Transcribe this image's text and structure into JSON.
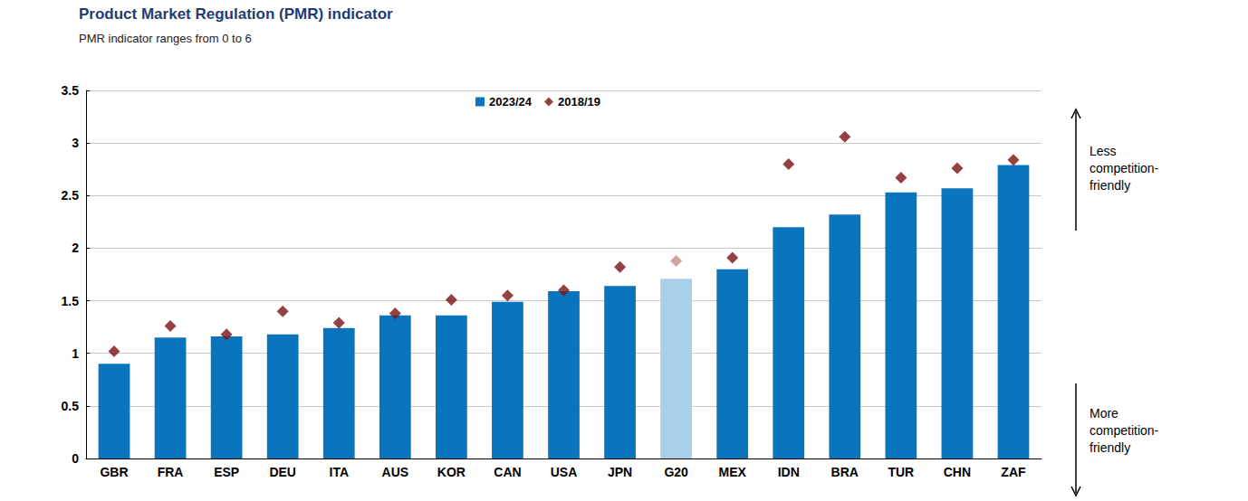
{
  "chart_data": {
    "type": "bar",
    "title": "Product Market Regulation (PMR) indicator",
    "subtitle": "PMR indicator ranges from 0 to 6",
    "annotations": [
      "Less competition-friendly",
      "More competition-friendly"
    ],
    "categories": [
      "GBR",
      "FRA",
      "ESP",
      "DEU",
      "ITA",
      "AUS",
      "KOR",
      "CAN",
      "USA",
      "JPN",
      "G20",
      "MEX",
      "IDN",
      "BRA",
      "TUR",
      "CHN",
      "ZAF"
    ],
    "series": [
      {
        "name": "2023/24",
        "type": "bar",
        "color": "#0a75bd",
        "colors": [
          "#0a75bd",
          "#0a75bd",
          "#0a75bd",
          "#0a75bd",
          "#0a75bd",
          "#0a75bd",
          "#0a75bd",
          "#0a75bd",
          "#0a75bd",
          "#0a75bd",
          "#a9cfea",
          "#0a75bd",
          "#0a75bd",
          "#0a75bd",
          "#0a75bd",
          "#0a75bd",
          "#0a75bd"
        ],
        "values": [
          0.9,
          1.15,
          1.16,
          1.18,
          1.24,
          1.36,
          1.36,
          1.49,
          1.59,
          1.64,
          1.71,
          1.8,
          2.2,
          2.32,
          2.53,
          2.57,
          2.79
        ]
      },
      {
        "name": "2018/19",
        "type": "scatter",
        "marker": "diamond",
        "color": "#7b1113",
        "colors": [
          "#7b1113",
          "#7b1113",
          "#7b1113",
          "#7b1113",
          "#7b1113",
          "#7b1113",
          "#7b1113",
          "#7b1113",
          "#7b1113",
          "#7b1113",
          "#c98b8c",
          "#7b1113",
          "#7b1113",
          "#7b1113",
          "#7b1113",
          "#7b1113",
          "#7b1113"
        ],
        "values": [
          1.02,
          1.26,
          1.18,
          1.4,
          1.29,
          1.38,
          1.51,
          1.55,
          1.6,
          1.82,
          1.88,
          1.91,
          2.8,
          3.06,
          2.67,
          2.76,
          2.84
        ]
      }
    ],
    "ylim": [
      0,
      3.5
    ],
    "yticks": [
      0,
      0.5,
      1,
      1.5,
      2,
      2.5,
      3,
      3.5
    ],
    "grid": true,
    "legend": "top"
  }
}
